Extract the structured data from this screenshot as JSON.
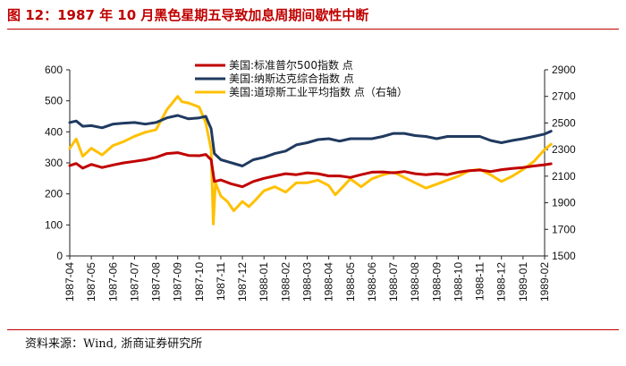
{
  "figure": {
    "title": "图 12：1987 年 10 月黑色星期五导致加息周期间歇性中断",
    "source": "资料来源：Wind, 浙商证券研究所"
  },
  "colors": {
    "sp500": "#c00000",
    "nasdaq": "#203a60",
    "dow": "#ffc000",
    "accent": "#c00000",
    "axis": "#222222"
  },
  "chart_data": {
    "type": "line",
    "title": "",
    "x": [
      "1987-04",
      "1987-05",
      "1987-06",
      "1987-07",
      "1987-08",
      "1987-09",
      "1987-10",
      "1987-11",
      "1987-12",
      "1988-01",
      "1988-02",
      "1988-03",
      "1988-04",
      "1988-05",
      "1988-06",
      "1988-07",
      "1988-08",
      "1988-09",
      "1988-10",
      "1988-11",
      "1988-12",
      "1989-01",
      "1989-02"
    ],
    "ylim": [
      0,
      600
    ],
    "y2lim": [
      1500,
      2900
    ],
    "y_ticks": [
      "0",
      "100",
      "200",
      "300",
      "400",
      "500",
      "600"
    ],
    "y2_ticks": [
      "1500",
      "1700",
      "1900",
      "2100",
      "2300",
      "2500",
      "2700",
      "2900"
    ],
    "legend_position": "top-center",
    "series": [
      {
        "name": "美国:标准普尔500指数 点",
        "axis": "left",
        "x": [
          0,
          0.3,
          0.6,
          1,
          1.5,
          2,
          2.5,
          3,
          3.5,
          4,
          4.5,
          5,
          5.5,
          6,
          6.3,
          6.55,
          6.7,
          7,
          7.5,
          8,
          8.5,
          9,
          9.5,
          10,
          10.5,
          11,
          11.5,
          12,
          12.5,
          13,
          13.5,
          14,
          14.5,
          15,
          15.5,
          16,
          16.5,
          17,
          17.5,
          18,
          18.5,
          19,
          19.5,
          20,
          20.5,
          21,
          21.5,
          22,
          22.3
        ],
        "values": [
          291,
          298,
          283,
          295,
          285,
          293,
          300,
          305,
          310,
          318,
          330,
          333,
          324,
          323,
          327,
          310,
          240,
          245,
          232,
          223,
          240,
          250,
          258,
          265,
          262,
          268,
          265,
          258,
          258,
          253,
          262,
          270,
          271,
          268,
          272,
          265,
          262,
          265,
          262,
          270,
          275,
          277,
          272,
          278,
          282,
          285,
          290,
          294,
          297
        ]
      },
      {
        "name": "美国:纳斯达克综合指数 点",
        "axis": "left",
        "x": [
          0,
          0.3,
          0.6,
          1,
          1.5,
          2,
          2.5,
          3,
          3.5,
          4,
          4.5,
          5,
          5.5,
          6,
          6.3,
          6.55,
          6.7,
          7,
          7.5,
          8,
          8.5,
          9,
          9.5,
          10,
          10.5,
          11,
          11.5,
          12,
          12.5,
          13,
          13.5,
          14,
          14.5,
          15,
          15.5,
          16,
          16.5,
          17,
          17.5,
          18,
          18.5,
          19,
          19.5,
          20,
          20.5,
          21,
          21.5,
          22,
          22.3
        ],
        "values": [
          430,
          435,
          418,
          420,
          413,
          425,
          428,
          430,
          425,
          430,
          445,
          453,
          442,
          445,
          450,
          410,
          330,
          310,
          300,
          290,
          310,
          318,
          330,
          338,
          358,
          365,
          375,
          378,
          370,
          378,
          378,
          378,
          385,
          395,
          395,
          388,
          385,
          378,
          385,
          385,
          385,
          385,
          372,
          365,
          372,
          378,
          385,
          393,
          402
        ]
      },
      {
        "name": "美国:道琼斯工业平均指数 点（右轴）",
        "axis": "right",
        "x": [
          0,
          0.3,
          0.6,
          1,
          1.5,
          2,
          2.5,
          3,
          3.5,
          4,
          4.5,
          5,
          5.2,
          5.5,
          6,
          6.3,
          6.55,
          6.65,
          6.75,
          7,
          7.3,
          7.6,
          8,
          8.3,
          8.6,
          9,
          9.5,
          10,
          10.5,
          11,
          11.5,
          12,
          12.3,
          12.6,
          13,
          13.5,
          14,
          14.5,
          15,
          15.5,
          16,
          16.5,
          17,
          17.5,
          18,
          18.5,
          19,
          19.5,
          20,
          20.5,
          21,
          21.5,
          22,
          22.3
        ],
        "values": [
          2310,
          2380,
          2250,
          2310,
          2260,
          2330,
          2360,
          2400,
          2430,
          2450,
          2600,
          2700,
          2660,
          2650,
          2620,
          2500,
          2300,
          1740,
          2050,
          1950,
          1910,
          1840,
          1910,
          1870,
          1920,
          1990,
          2020,
          1980,
          2050,
          2050,
          2070,
          2030,
          1960,
          2010,
          2080,
          2020,
          2080,
          2110,
          2130,
          2090,
          2050,
          2010,
          2040,
          2070,
          2100,
          2140,
          2150,
          2110,
          2060,
          2100,
          2150,
          2210,
          2300,
          2340
        ]
      }
    ]
  }
}
